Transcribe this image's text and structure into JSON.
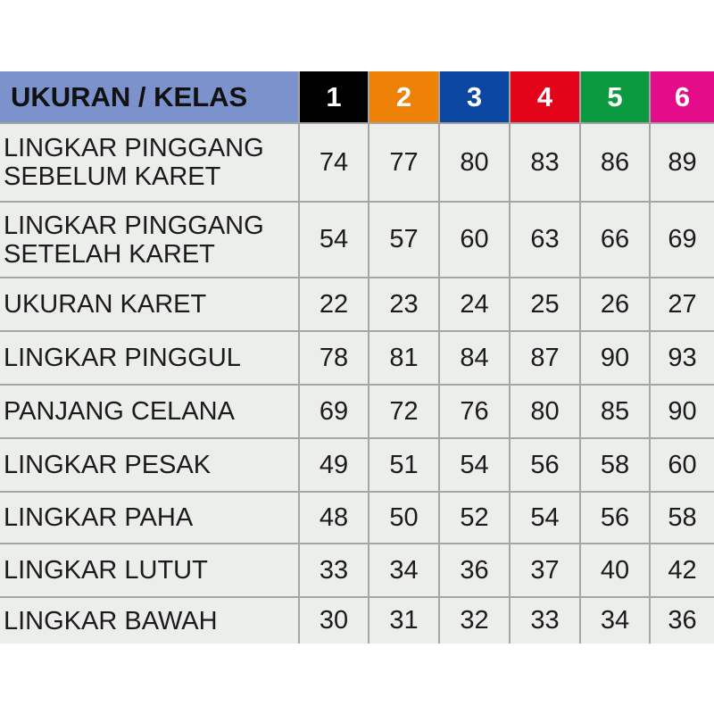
{
  "table": {
    "header_label": "UKURAN / KELAS",
    "sizes": [
      {
        "label": "1",
        "color": "#000000"
      },
      {
        "label": "2",
        "color": "#ee8207"
      },
      {
        "label": "3",
        "color": "#0b47a0"
      },
      {
        "label": "4",
        "color": "#e3041a"
      },
      {
        "label": "5",
        "color": "#0b9a3f"
      },
      {
        "label": "6",
        "color": "#e40c88"
      }
    ],
    "rows": [
      {
        "label_lines": [
          "LINGKAR PINGGANG",
          "SEBELUM KARET"
        ],
        "values": [
          "74",
          "77",
          "80",
          "83",
          "86",
          "89"
        ]
      },
      {
        "label_lines": [
          "LINGKAR PINGGANG",
          "SETELAH KARET"
        ],
        "values": [
          "54",
          "57",
          "60",
          "63",
          "66",
          "69"
        ]
      },
      {
        "label_lines": [
          "UKURAN KARET"
        ],
        "values": [
          "22",
          "23",
          "24",
          "25",
          "26",
          "27"
        ]
      },
      {
        "label_lines": [
          "LINGKAR PINGGUL"
        ],
        "values": [
          "78",
          "81",
          "84",
          "87",
          "90",
          "93"
        ]
      },
      {
        "label_lines": [
          "PANJANG CELANA"
        ],
        "values": [
          "69",
          "72",
          "76",
          "80",
          "85",
          "90"
        ]
      },
      {
        "label_lines": [
          "LINGKAR PESAK"
        ],
        "values": [
          "49",
          "51",
          "54",
          "56",
          "58",
          "60"
        ]
      },
      {
        "label_lines": [
          "LINGKAR PAHA"
        ],
        "values": [
          "48",
          "50",
          "52",
          "54",
          "56",
          "58"
        ]
      },
      {
        "label_lines": [
          "LINGKAR LUTUT"
        ],
        "values": [
          "33",
          "34",
          "36",
          "37",
          "40",
          "42"
        ]
      },
      {
        "label_lines": [
          "LINGKAR BAWAH"
        ],
        "values": [
          "30",
          "31",
          "32",
          "33",
          "34",
          "36"
        ]
      }
    ]
  }
}
